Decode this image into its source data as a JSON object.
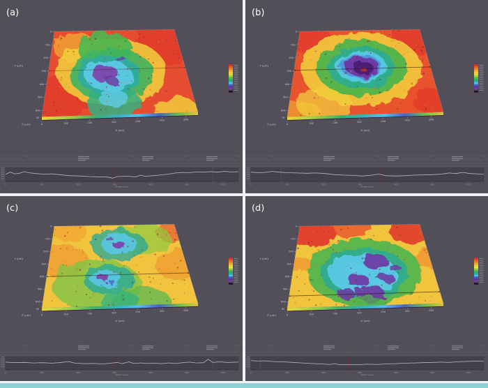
{
  "figure": {
    "background_color": "#524f58",
    "divider_color": "#f4f2f4",
    "footer_bar_color": "#8ed2d8",
    "axis_text_color": "#c6c4cc",
    "profile_line_color": "#b9b7bf",
    "grid_line_color": "#615f69"
  },
  "shared": {
    "x_axis_title": "X (µm)",
    "y_axis_title": "Y (µm)",
    "z_axis_title": "Z (µm)",
    "x_axis_ticks": [
      "0",
      "100",
      "200",
      "300",
      "400",
      "500",
      "600"
    ],
    "y_axis_ticks": [
      "0",
      "100",
      "200",
      "300",
      "400",
      "500",
      "600"
    ],
    "axis_range_um": [
      0,
      650
    ],
    "legend_colors": [
      "#e03228",
      "#ec5a2c",
      "#f48232",
      "#f8a836",
      "#f8cc3a",
      "#e8e440",
      "#aada40",
      "#62c248",
      "#2eb460",
      "#2fb2b2",
      "#52c0ea",
      "#4a66d2",
      "#5a34b0",
      "#7c38aa"
    ],
    "legend_dark_band": "#280e36",
    "profile": {
      "x_ticks": [
        "0",
        "100",
        "200",
        "300",
        "400",
        "500",
        "600"
      ],
      "x_axis_label": "Distance (µm)"
    }
  },
  "chart_data": [
    {
      "id": "a",
      "label": "(a)",
      "type": "surface-heatmap",
      "z_base_label": "45",
      "description": "Irregular central depression (cyan/purple) in orange-red surface, diagonal green band",
      "base_color": "#e64a2e",
      "marker_line_y_um": 300,
      "marker_line_opacity": 0.35,
      "seed": 11,
      "blobs": [
        [
          580,
          120,
          150,
          "#e03a28",
          0.9
        ],
        [
          60,
          500,
          160,
          "#e03a28",
          0.9
        ],
        [
          120,
          120,
          110,
          "#f0a030",
          0.8
        ],
        [
          300,
          320,
          260,
          "#f2cf3a",
          0.85
        ],
        [
          560,
          640,
          110,
          "#f2cf3a",
          0.8
        ],
        [
          270,
          140,
          130,
          "#46b44c",
          0.9
        ],
        [
          300,
          340,
          200,
          "#3cb05c",
          0.9
        ],
        [
          300,
          560,
          130,
          "#2fae7c",
          0.85
        ],
        [
          285,
          340,
          150,
          "#2aa8a0",
          0.85
        ],
        [
          285,
          350,
          112,
          "#5cc8e8",
          0.9
        ],
        [
          300,
          520,
          70,
          "#5cc8e8",
          0.8
        ],
        [
          268,
          330,
          62,
          "#7a3aa8",
          0.9
        ],
        [
          300,
          390,
          30,
          "#6a32a0",
          0.8
        ],
        [
          350,
          230,
          22,
          "#6a32a0",
          0.7
        ]
      ],
      "profile_points": [
        [
          0,
          45
        ],
        [
          2,
          30
        ],
        [
          4,
          42
        ],
        [
          6,
          38
        ],
        [
          8,
          26
        ],
        [
          10,
          34
        ],
        [
          13,
          40
        ],
        [
          16,
          44
        ],
        [
          20,
          42
        ],
        [
          24,
          50
        ],
        [
          28,
          56
        ],
        [
          32,
          58
        ],
        [
          36,
          62
        ],
        [
          40,
          64
        ],
        [
          44,
          66
        ],
        [
          46,
          74
        ],
        [
          48,
          62
        ],
        [
          52,
          60
        ],
        [
          56,
          64
        ],
        [
          58,
          52
        ],
        [
          60,
          60
        ],
        [
          63,
          56
        ],
        [
          66,
          52
        ],
        [
          70,
          44
        ],
        [
          73,
          36
        ],
        [
          76,
          32
        ],
        [
          79,
          34
        ],
        [
          82,
          28
        ],
        [
          85,
          30
        ],
        [
          88,
          26
        ],
        [
          91,
          30
        ],
        [
          94,
          24
        ],
        [
          97,
          28
        ],
        [
          100,
          26
        ]
      ],
      "profile_markers": [
        {
          "u": 0.47,
          "color": "#7a2a26"
        },
        {
          "u": 0.89,
          "color": "#3a4ad0"
        }
      ]
    },
    {
      "id": "b",
      "label": "(b)",
      "type": "surface-heatmap",
      "z_base_label": "75",
      "description": "Concentric crater: purple core, cyan/green rings, orange-red rim",
      "base_color": "#e8502c",
      "marker_line_y_um": 295,
      "marker_line_opacity": 0.6,
      "seed": 23,
      "blobs": [
        [
          50,
          60,
          110,
          "#e03a28",
          0.85
        ],
        [
          600,
          80,
          110,
          "#e03a28",
          0.85
        ],
        [
          620,
          560,
          100,
          "#e03a28",
          0.8
        ],
        [
          60,
          620,
          90,
          "#f0a030",
          0.7
        ],
        [
          320,
          300,
          285,
          "#f2c838",
          0.9
        ],
        [
          150,
          560,
          130,
          "#f2cf3a",
          0.7
        ],
        [
          320,
          290,
          215,
          "#48b148",
          0.92
        ],
        [
          320,
          285,
          160,
          "#2aa890",
          0.88
        ],
        [
          320,
          280,
          120,
          "#55c8e8",
          0.92
        ],
        [
          320,
          280,
          95,
          "#4a6ad0",
          0.55
        ],
        [
          325,
          280,
          80,
          "#6a34a0",
          0.95
        ],
        [
          330,
          290,
          48,
          "#45186c",
          0.9
        ],
        [
          330,
          300,
          14,
          "#c03028",
          0.8
        ]
      ],
      "profile_points": [
        [
          0,
          30
        ],
        [
          3,
          34
        ],
        [
          6,
          32
        ],
        [
          9,
          24
        ],
        [
          12,
          30
        ],
        [
          16,
          34
        ],
        [
          20,
          36
        ],
        [
          24,
          38
        ],
        [
          28,
          36
        ],
        [
          32,
          40
        ],
        [
          36,
          48
        ],
        [
          40,
          52
        ],
        [
          44,
          54
        ],
        [
          48,
          58
        ],
        [
          52,
          52
        ],
        [
          55,
          44
        ],
        [
          58,
          56
        ],
        [
          62,
          58
        ],
        [
          66,
          56
        ],
        [
          70,
          52
        ],
        [
          74,
          50
        ],
        [
          78,
          48
        ],
        [
          82,
          44
        ],
        [
          85,
          36
        ],
        [
          88,
          40
        ],
        [
          91,
          32
        ],
        [
          94,
          40
        ],
        [
          97,
          42
        ],
        [
          100,
          44
        ]
      ],
      "profile_markers": [
        {
          "u": 0.13,
          "color": "#3a4ad0"
        },
        {
          "u": 0.56,
          "color": "#7a2a26"
        }
      ]
    },
    {
      "id": "c",
      "label": "(c)",
      "type": "surface-heatmap",
      "z_base_label": "55",
      "description": "Yellow-green mottled surface with two cyan/purple depressions",
      "base_color": "#f0c23a",
      "marker_line_y_um": 400,
      "marker_line_opacity": 0.6,
      "seed": 37,
      "blobs": [
        [
          60,
          280,
          130,
          "#f09a30",
          0.8
        ],
        [
          620,
          330,
          120,
          "#f09a30",
          0.8
        ],
        [
          640,
          60,
          90,
          "#e8622e",
          0.8
        ],
        [
          90,
          50,
          80,
          "#f0a030",
          0.7
        ],
        [
          230,
          480,
          210,
          "#7cc244",
          0.8
        ],
        [
          470,
          120,
          130,
          "#8cc83e",
          0.7
        ],
        [
          420,
          640,
          140,
          "#5cb84c",
          0.8
        ],
        [
          340,
          160,
          130,
          "#2aa890",
          0.8
        ],
        [
          340,
          150,
          85,
          "#55c4e4",
          0.9
        ],
        [
          345,
          165,
          30,
          "#7a3aa8",
          0.9
        ],
        [
          300,
          120,
          18,
          "#7a3aa8",
          0.7
        ],
        [
          280,
          430,
          120,
          "#2aa890",
          0.85
        ],
        [
          270,
          430,
          72,
          "#55c4e4",
          0.9
        ],
        [
          262,
          428,
          30,
          "#7a3aa8",
          0.9
        ],
        [
          300,
          465,
          16,
          "#4a5ad0",
          0.8
        ],
        [
          330,
          620,
          90,
          "#2fae7c",
          0.7
        ]
      ],
      "profile_points": [
        [
          0,
          40
        ],
        [
          4,
          44
        ],
        [
          8,
          42
        ],
        [
          12,
          46
        ],
        [
          16,
          44
        ],
        [
          20,
          48
        ],
        [
          24,
          42
        ],
        [
          27,
          36
        ],
        [
          30,
          48
        ],
        [
          34,
          52
        ],
        [
          38,
          50
        ],
        [
          42,
          54
        ],
        [
          45,
          48
        ],
        [
          48,
          42
        ],
        [
          50,
          52
        ],
        [
          53,
          38
        ],
        [
          55,
          50
        ],
        [
          58,
          46
        ],
        [
          61,
          50
        ],
        [
          64,
          48
        ],
        [
          67,
          52
        ],
        [
          70,
          46
        ],
        [
          73,
          50
        ],
        [
          76,
          44
        ],
        [
          79,
          40
        ],
        [
          82,
          46
        ],
        [
          85,
          44
        ],
        [
          87,
          18
        ],
        [
          89,
          42
        ],
        [
          92,
          38
        ],
        [
          95,
          42
        ],
        [
          100,
          40
        ]
      ],
      "profile_markers": [
        {
          "u": 0.47,
          "color": "#7a2a26"
        },
        {
          "u": 0.89,
          "color": "#3a4ad0"
        }
      ]
    },
    {
      "id": "d",
      "label": "(d)",
      "type": "surface-heatmap",
      "z_base_label": "65",
      "description": "Large central basin: cyan floor with purple patches, green/yellow rings, red corners",
      "base_color": "#f0c23a",
      "marker_line_y_um": 555,
      "marker_line_opacity": 0.65,
      "seed": 51,
      "blobs": [
        [
          55,
          45,
          120,
          "#e0382a",
          0.95
        ],
        [
          280,
          15,
          90,
          "#e8502c",
          0.8
        ],
        [
          600,
          55,
          110,
          "#e0382a",
          0.9
        ],
        [
          645,
          280,
          70,
          "#f09030",
          0.8
        ],
        [
          25,
          300,
          60,
          "#f09030",
          0.7
        ],
        [
          330,
          380,
          270,
          "#4cb24a",
          0.92
        ],
        [
          330,
          390,
          205,
          "#2aa890",
          0.88
        ],
        [
          325,
          395,
          160,
          "#58c8e8",
          0.92
        ],
        [
          390,
          300,
          58,
          "#6a34a0",
          0.9
        ],
        [
          300,
          440,
          50,
          "#6a34a0",
          0.9
        ],
        [
          350,
          555,
          68,
          "#6a34a0",
          0.9
        ],
        [
          250,
          555,
          40,
          "#6a34a0",
          0.85
        ],
        [
          430,
          430,
          36,
          "#6a34a0",
          0.85
        ],
        [
          480,
          360,
          28,
          "#6a34a0",
          0.8
        ],
        [
          300,
          360,
          46,
          "#58c8e8",
          0.85
        ],
        [
          380,
          470,
          30,
          "#58c8e8",
          0.7
        ],
        [
          330,
          660,
          90,
          "#4cb24a",
          0.7
        ]
      ],
      "profile_points": [
        [
          0,
          28
        ],
        [
          3,
          32
        ],
        [
          6,
          30
        ],
        [
          10,
          36
        ],
        [
          14,
          38
        ],
        [
          18,
          42
        ],
        [
          22,
          46
        ],
        [
          26,
          50
        ],
        [
          30,
          54
        ],
        [
          34,
          58
        ],
        [
          36,
          52
        ],
        [
          38,
          60
        ],
        [
          42,
          58
        ],
        [
          46,
          60
        ],
        [
          50,
          56
        ],
        [
          54,
          58
        ],
        [
          58,
          54
        ],
        [
          62,
          52
        ],
        [
          66,
          48
        ],
        [
          70,
          46
        ],
        [
          74,
          44
        ],
        [
          78,
          42
        ],
        [
          82,
          40
        ],
        [
          85,
          42
        ],
        [
          88,
          38
        ],
        [
          91,
          36
        ],
        [
          94,
          34
        ],
        [
          97,
          32
        ],
        [
          100,
          34
        ]
      ],
      "profile_markers": [
        {
          "u": 0.04,
          "color": "#3a4ad0"
        },
        {
          "u": 0.42,
          "color": "#7a2a26"
        }
      ]
    }
  ]
}
